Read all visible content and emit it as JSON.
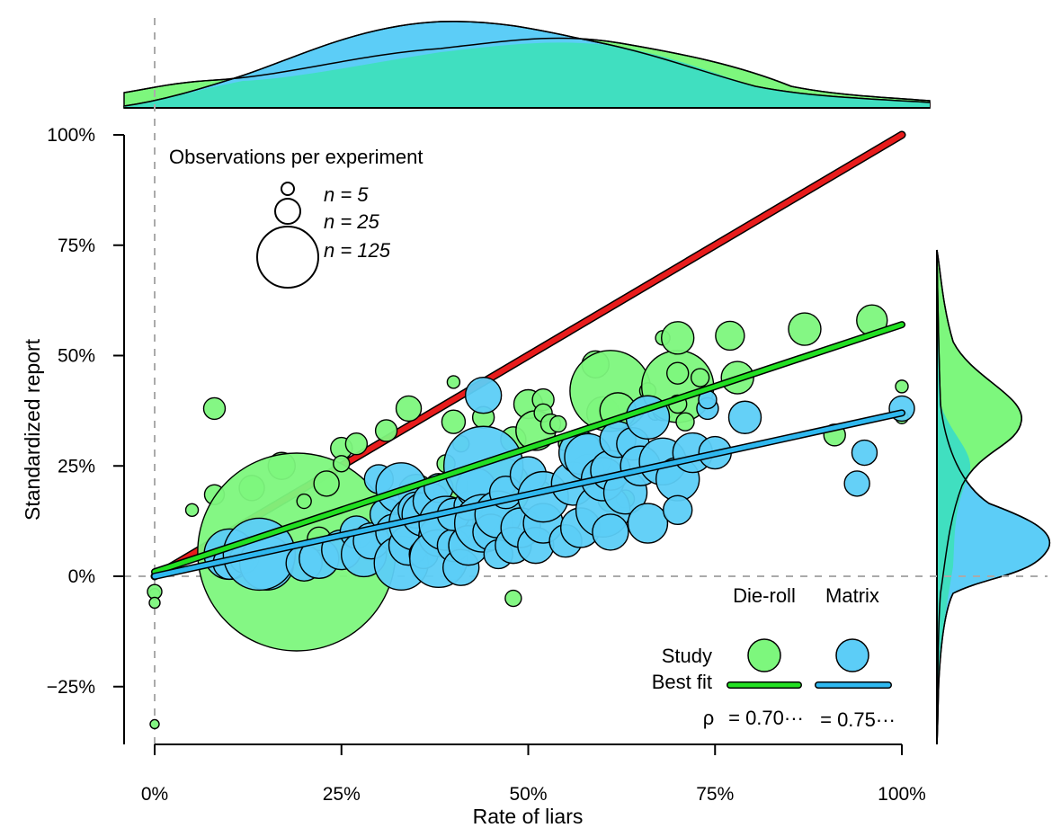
{
  "chart_data": {
    "type": "scatter",
    "xlabel": "Rate of liars",
    "ylabel": "Standardized report",
    "xlim": [
      -0.04,
      1.04
    ],
    "ylim": [
      -0.38,
      1.0
    ],
    "x_ticks": [
      "0%",
      "25%",
      "50%",
      "75%",
      "100%"
    ],
    "x_tick_values": [
      0,
      0.25,
      0.5,
      0.75,
      1.0
    ],
    "y_ticks": [
      "100%",
      "75%",
      "50%",
      "25%",
      "0%",
      "−25%"
    ],
    "y_tick_values": [
      1.0,
      0.75,
      0.5,
      0.25,
      0,
      -0.25
    ],
    "size_legend": {
      "title": "Observations per experiment",
      "entries": [
        {
          "label": "n = 5",
          "n": 5
        },
        {
          "label": "n = 25",
          "n": 25
        },
        {
          "label": "n = 125",
          "n": 125
        }
      ]
    },
    "group_legend": {
      "columns": [
        "Die-roll",
        "Matrix"
      ],
      "row_study": "Study",
      "row_fit": "Best fit",
      "rho_symbol": "ρ",
      "rho_values": [
        "= 0.70···",
        "= 0.75···"
      ]
    },
    "colors": {
      "die_roll": "#7df77d",
      "matrix": "#5ccdf7",
      "honesty_line": "#e81c1c",
      "die_roll_fit": "#22e022",
      "matrix_fit": "#2fb8ef",
      "overlap": "#40dfc0"
    },
    "reference_line": {
      "x": [
        0,
        1
      ],
      "y": [
        0,
        1
      ]
    },
    "fits": [
      {
        "name": "Die-roll",
        "x": [
          0,
          1
        ],
        "y": [
          0.01,
          0.57
        ]
      },
      {
        "name": "Matrix",
        "x": [
          0,
          1
        ],
        "y": [
          0.0,
          0.37
        ]
      }
    ],
    "series": [
      {
        "name": "Die-roll",
        "points": [
          [
            0.0,
            -0.04,
            6
          ],
          [
            0.0,
            -0.035,
            8
          ],
          [
            0.0,
            -0.06,
            6
          ],
          [
            0.0,
            -0.335,
            5
          ],
          [
            0.05,
            0.15,
            7
          ],
          [
            0.08,
            0.38,
            12
          ],
          [
            0.08,
            0.185,
            11
          ],
          [
            0.09,
            0.075,
            9
          ],
          [
            0.13,
            0.2,
            14
          ],
          [
            0.17,
            0.25,
            15
          ],
          [
            0.19,
            0.055,
            110
          ],
          [
            0.2,
            0.17,
            8
          ],
          [
            0.22,
            0.085,
            13
          ],
          [
            0.23,
            0.21,
            14
          ],
          [
            0.25,
            0.29,
            12
          ],
          [
            0.25,
            0.255,
            9
          ],
          [
            0.27,
            0.3,
            12
          ],
          [
            0.31,
            0.33,
            12
          ],
          [
            0.34,
            0.38,
            14
          ],
          [
            0.35,
            0.19,
            20
          ],
          [
            0.39,
            0.255,
            10
          ],
          [
            0.4,
            0.44,
            7
          ],
          [
            0.4,
            0.01,
            9
          ],
          [
            0.4,
            0.35,
            13
          ],
          [
            0.41,
            0.3,
            9
          ],
          [
            0.42,
            0.165,
            40
          ],
          [
            0.44,
            0.36,
            12
          ],
          [
            0.46,
            0.2,
            35
          ],
          [
            0.48,
            0.31,
            14
          ],
          [
            0.48,
            -0.05,
            9
          ],
          [
            0.5,
            0.39,
            16
          ],
          [
            0.51,
            0.33,
            22
          ],
          [
            0.52,
            0.4,
            12
          ],
          [
            0.52,
            0.37,
            10
          ],
          [
            0.53,
            0.345,
            11
          ],
          [
            0.52,
            0.2,
            7
          ],
          [
            0.54,
            0.345,
            9
          ],
          [
            0.55,
            0.3,
            8
          ],
          [
            0.58,
            0.24,
            18
          ],
          [
            0.59,
            0.48,
            15
          ],
          [
            0.6,
            0.37,
            18
          ],
          [
            0.61,
            0.42,
            45
          ],
          [
            0.62,
            0.375,
            20
          ],
          [
            0.61,
            0.175,
            14
          ],
          [
            0.63,
            0.175,
            10
          ],
          [
            0.66,
            0.42,
            9
          ],
          [
            0.67,
            0.37,
            8
          ],
          [
            0.68,
            0.375,
            11
          ],
          [
            0.68,
            0.54,
            8
          ],
          [
            0.7,
            0.43,
            40
          ],
          [
            0.7,
            0.54,
            18
          ],
          [
            0.7,
            0.46,
            12
          ],
          [
            0.7,
            0.39,
            10
          ],
          [
            0.71,
            0.35,
            10
          ],
          [
            0.73,
            0.45,
            10
          ],
          [
            0.77,
            0.545,
            16
          ],
          [
            0.78,
            0.45,
            18
          ],
          [
            0.87,
            0.56,
            18
          ],
          [
            0.91,
            0.32,
            12
          ],
          [
            0.96,
            0.58,
            17
          ],
          [
            1.0,
            0.43,
            7
          ],
          [
            1.0,
            0.36,
            7
          ]
        ]
      },
      {
        "name": "Matrix",
        "points": [
          [
            0.1,
            0.05,
            28
          ],
          [
            0.1,
            0.03,
            18
          ],
          [
            0.12,
            0.04,
            16
          ],
          [
            0.15,
            0.03,
            30
          ],
          [
            0.14,
            0.05,
            40
          ],
          [
            0.2,
            0.03,
            20
          ],
          [
            0.22,
            0.04,
            22
          ],
          [
            0.25,
            0.06,
            22
          ],
          [
            0.27,
            0.1,
            18
          ],
          [
            0.28,
            0.05,
            25
          ],
          [
            0.29,
            0.08,
            20
          ],
          [
            0.3,
            0.22,
            16
          ],
          [
            0.31,
            0.14,
            18
          ],
          [
            0.32,
            0.1,
            20
          ],
          [
            0.33,
            0.2,
            28
          ],
          [
            0.33,
            0.03,
            30
          ],
          [
            0.34,
            0.07,
            22
          ],
          [
            0.35,
            0.12,
            30
          ],
          [
            0.35,
            0.15,
            20
          ],
          [
            0.36,
            0.14,
            24
          ],
          [
            0.36,
            0.05,
            16
          ],
          [
            0.37,
            0.17,
            20
          ],
          [
            0.38,
            0.09,
            22
          ],
          [
            0.38,
            0.2,
            16
          ],
          [
            0.38,
            0.04,
            32
          ],
          [
            0.39,
            0.12,
            30
          ],
          [
            0.4,
            0.07,
            18
          ],
          [
            0.4,
            0.14,
            18
          ],
          [
            0.41,
            0.02,
            20
          ],
          [
            0.42,
            0.07,
            22
          ],
          [
            0.42,
            0.16,
            16
          ],
          [
            0.43,
            0.2,
            22
          ],
          [
            0.44,
            0.25,
            44
          ],
          [
            0.44,
            0.41,
            20
          ],
          [
            0.44,
            0.12,
            32
          ],
          [
            0.45,
            0.1,
            20
          ],
          [
            0.46,
            0.14,
            26
          ],
          [
            0.46,
            0.05,
            16
          ],
          [
            0.47,
            0.19,
            18
          ],
          [
            0.48,
            0.07,
            20
          ],
          [
            0.49,
            0.11,
            22
          ],
          [
            0.5,
            0.23,
            20
          ],
          [
            0.51,
            0.07,
            20
          ],
          [
            0.52,
            0.12,
            22
          ],
          [
            0.52,
            0.18,
            28
          ],
          [
            0.55,
            0.08,
            18
          ],
          [
            0.56,
            0.21,
            24
          ],
          [
            0.57,
            0.11,
            22
          ],
          [
            0.57,
            0.28,
            24
          ],
          [
            0.58,
            0.27,
            26
          ],
          [
            0.6,
            0.15,
            30
          ],
          [
            0.6,
            0.22,
            24
          ],
          [
            0.61,
            0.1,
            20
          ],
          [
            0.61,
            0.24,
            22
          ],
          [
            0.62,
            0.31,
            20
          ],
          [
            0.63,
            0.19,
            24
          ],
          [
            0.64,
            0.3,
            18
          ],
          [
            0.65,
            0.25,
            22
          ],
          [
            0.66,
            0.12,
            22
          ],
          [
            0.66,
            0.36,
            24
          ],
          [
            0.68,
            0.26,
            26
          ],
          [
            0.7,
            0.22,
            24
          ],
          [
            0.7,
            0.15,
            16
          ],
          [
            0.72,
            0.28,
            22
          ],
          [
            0.74,
            0.38,
            12
          ],
          [
            0.74,
            0.4,
            10
          ],
          [
            0.75,
            0.28,
            18
          ],
          [
            0.79,
            0.36,
            18
          ],
          [
            0.94,
            0.21,
            14
          ],
          [
            0.95,
            0.28,
            14
          ],
          [
            1.0,
            0.38,
            14
          ]
        ]
      }
    ]
  }
}
